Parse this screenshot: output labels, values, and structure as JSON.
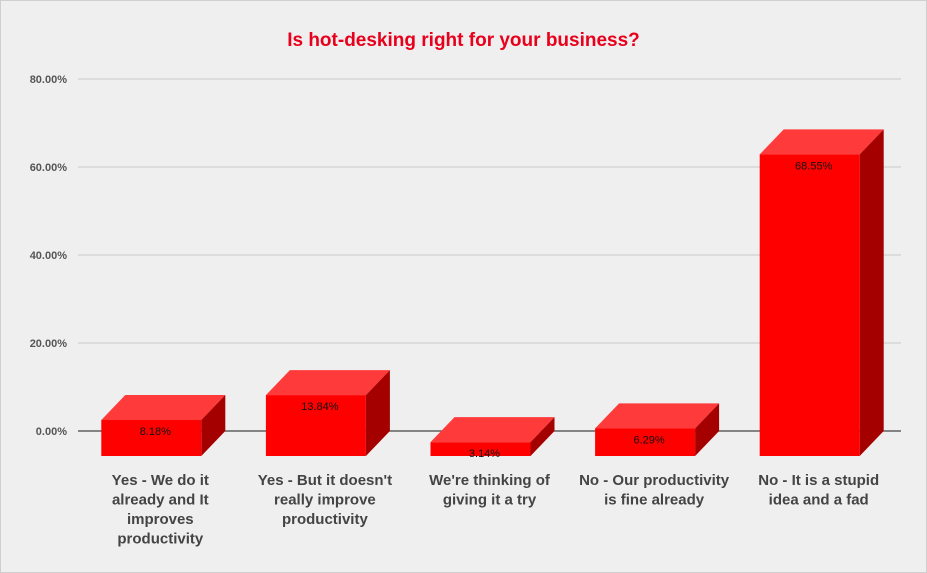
{
  "chart_data": {
    "type": "bar",
    "title": "Is hot-desking right for your business?",
    "xlabel": "",
    "ylabel": "",
    "categories": [
      [
        "Yes - We do it",
        "already and It",
        "improves",
        "productivity"
      ],
      [
        "Yes - But it doesn't",
        "really improve",
        "productivity"
      ],
      [
        "We're thinking of",
        "giving it a try"
      ],
      [
        "No - Our productivity",
        "is fine already"
      ],
      [
        "No - It is a stupid",
        "idea and a fad"
      ]
    ],
    "values": [
      8.18,
      13.84,
      3.14,
      6.29,
      68.55
    ],
    "value_labels": [
      "8.18%",
      "13.84%",
      "3.14%",
      "6.29%",
      "68.55%"
    ],
    "yticks": [
      "0.00%",
      "20.00%",
      "40.00%",
      "60.00%",
      "80.00%"
    ],
    "ytick_values": [
      0,
      20,
      40,
      60,
      80
    ],
    "ylim": [
      0,
      80
    ],
    "grid": true,
    "legend": "none",
    "colors": {
      "bar_front": "#fe0000",
      "bar_top": "#ff3a3a",
      "bar_side": "#a50000",
      "title": "#e8001c",
      "grid": "#c8c8c8"
    },
    "style": "3d"
  }
}
